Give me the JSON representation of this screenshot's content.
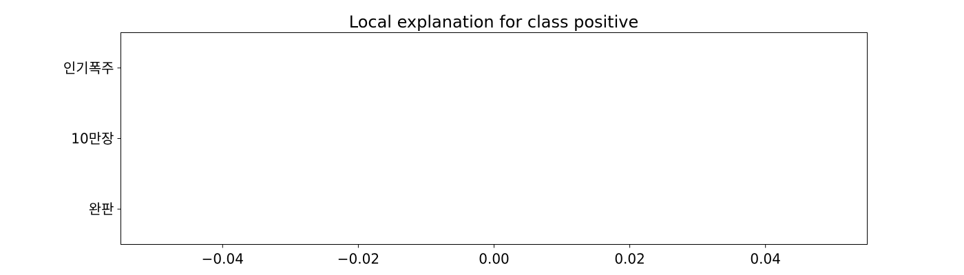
{
  "chart_data": {
    "type": "bar",
    "orientation": "horizontal",
    "title": "Local explanation for class positive",
    "xlabel": "",
    "ylabel": "",
    "categories": [
      "인기폭주",
      "10만장",
      "완판"
    ],
    "values": [
      0,
      0,
      0
    ],
    "xlim": [
      -0.055,
      0.055
    ],
    "x_ticks": [
      -0.04,
      -0.02,
      0.0,
      0.02,
      0.04
    ],
    "x_tick_labels": [
      "−0.04",
      "−0.02",
      "0.00",
      "0.02",
      "0.04"
    ],
    "grid": false,
    "legend": "none",
    "colors": {
      "positive": "#2ca02c",
      "negative": "#d62728",
      "text": "#000000",
      "background": "#ffffff"
    }
  }
}
